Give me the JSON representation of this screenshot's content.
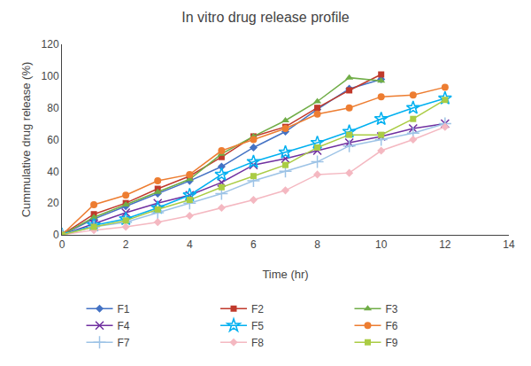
{
  "chart_data": {
    "type": "line",
    "title": "In vitro drug release profile",
    "xlabel": "Time (hr)",
    "ylabel": "Cummulative drug release (%)",
    "x": [
      0,
      1,
      2,
      3,
      4,
      5,
      6,
      7,
      8,
      9,
      10,
      11,
      12
    ],
    "xlim": [
      0,
      14
    ],
    "ylim": [
      0,
      120
    ],
    "xticks": [
      0,
      2,
      4,
      6,
      8,
      10,
      12,
      14
    ],
    "yticks": [
      0,
      20,
      40,
      60,
      80,
      100,
      120
    ],
    "grid": false,
    "legend": "bottom",
    "series": [
      {
        "name": "F1",
        "color": "#4472C4",
        "marker": "diamond",
        "values": [
          0,
          10,
          18,
          26,
          34,
          43,
          55,
          65,
          79,
          92,
          98,
          null,
          null
        ]
      },
      {
        "name": "F2",
        "color": "#C0392B",
        "marker": "square",
        "values": [
          0,
          13,
          20,
          29,
          37,
          49,
          62,
          68,
          80,
          91,
          101,
          null,
          null
        ]
      },
      {
        "name": "F3",
        "color": "#70AD47",
        "marker": "triangle-up",
        "values": [
          0,
          11,
          19,
          27,
          35,
          51,
          62,
          72,
          84,
          99,
          97,
          null,
          null
        ]
      },
      {
        "name": "F4",
        "color": "#7030A0",
        "marker": "x",
        "values": [
          0,
          7,
          14,
          20,
          25,
          33,
          44,
          48,
          53,
          58,
          62,
          67,
          70
        ]
      },
      {
        "name": "F5",
        "color": "#00B0F0",
        "marker": "star",
        "values": [
          0,
          6,
          10,
          17,
          25,
          38,
          46,
          52,
          58,
          65,
          73,
          80,
          86
        ]
      },
      {
        "name": "F6",
        "color": "#ED7D31",
        "marker": "circle",
        "values": [
          0,
          19,
          25,
          34,
          38,
          53,
          60,
          67,
          76,
          80,
          87,
          88,
          93
        ]
      },
      {
        "name": "F7",
        "color": "#9DC3E6",
        "marker": "cross",
        "values": [
          0,
          5,
          8,
          14,
          20,
          26,
          34,
          40,
          46,
          56,
          60,
          64,
          70
        ]
      },
      {
        "name": "F8",
        "color": "#F4B8C1",
        "marker": "diamond",
        "values": [
          0,
          3,
          5,
          8,
          12,
          17,
          22,
          28,
          38,
          39,
          53,
          60,
          68
        ]
      },
      {
        "name": "F9",
        "color": "#AACC44",
        "marker": "square",
        "values": [
          0,
          5,
          9,
          16,
          22,
          30,
          37,
          44,
          55,
          63,
          63,
          73,
          85
        ]
      }
    ]
  }
}
